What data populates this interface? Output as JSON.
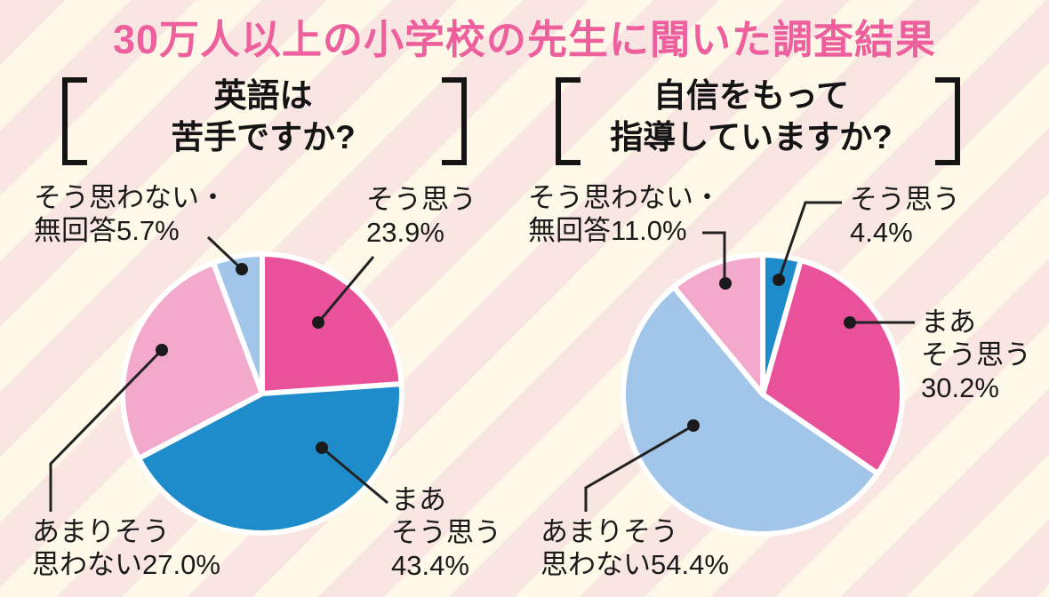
{
  "page": {
    "title": "30万人以上の小学校の先生に聞いた調査結果"
  },
  "colors": {
    "title_pink": "#ee5f9e",
    "heading_black": "#141414",
    "text_dark": "#1a1a1a",
    "bg_cream": "#fdf8e7",
    "bg_stripe_pink": "#f9e6e3",
    "leader_line": "#222222",
    "slice_magenta": "#e9529b",
    "slice_blue": "#1e8ccb",
    "slice_light_pink": "#f3a9cc",
    "slice_light_blue": "#a2c6ea",
    "slice_divider_white": "#ffffff"
  },
  "chart_data": [
    {
      "type": "pie",
      "title": "英語は苦手ですか?",
      "title_lines": [
        "英語は",
        "苦手ですか?"
      ],
      "unit": "%",
      "start_angle_deg": 0,
      "direction": "clockwise",
      "slices": [
        {
          "label": "そう思う",
          "value": 23.9,
          "color_key": "slice_magenta"
        },
        {
          "label": "まあそう思う",
          "value": 43.4,
          "color_key": "slice_blue"
        },
        {
          "label": "あまりそう思わない",
          "value": 27.0,
          "color_key": "slice_light_pink"
        },
        {
          "label": "そう思わない・無回答",
          "value": 5.7,
          "color_key": "slice_light_blue"
        }
      ],
      "callouts": [
        {
          "lines": [
            "そう思わない・",
            "無回答5.7%"
          ]
        },
        {
          "lines": [
            "そう思う",
            "23.9%"
          ]
        },
        {
          "lines": [
            "あまりそう",
            "思わない27.0%"
          ]
        },
        {
          "lines": [
            "まあ",
            "そう思う",
            "43.4%"
          ]
        }
      ]
    },
    {
      "type": "pie",
      "title": "自信をもって指導していますか?",
      "title_lines": [
        "自信をもって",
        "指導していますか?"
      ],
      "unit": "%",
      "start_angle_deg": 0,
      "direction": "clockwise",
      "slices": [
        {
          "label": "そう思う",
          "value": 4.4,
          "color_key": "slice_blue"
        },
        {
          "label": "まあそう思う",
          "value": 30.2,
          "color_key": "slice_magenta"
        },
        {
          "label": "あまりそう思わない",
          "value": 54.4,
          "color_key": "slice_light_blue"
        },
        {
          "label": "そう思わない・無回答",
          "value": 11.0,
          "color_key": "slice_light_pink"
        }
      ],
      "callouts": [
        {
          "lines": [
            "そう思わない・",
            "無回答11.0%"
          ]
        },
        {
          "lines": [
            "そう思う",
            "4.4%"
          ]
        },
        {
          "lines": [
            "まあ",
            "そう思う",
            "30.2%"
          ]
        },
        {
          "lines": [
            "あまりそう",
            "思わない54.4%"
          ]
        }
      ]
    }
  ]
}
